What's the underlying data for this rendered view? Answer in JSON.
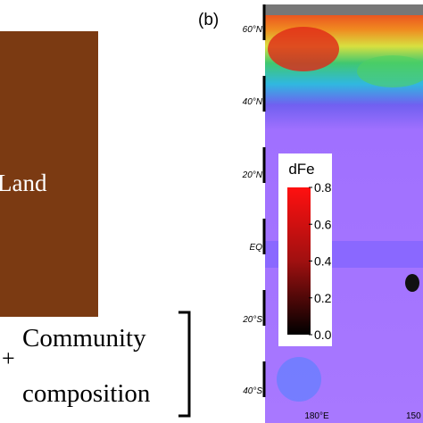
{
  "left_panel": {
    "label": "Land",
    "plus": "+",
    "line1": "Community",
    "line2": "composition"
  },
  "map_panel": {
    "panel_label": "(b)",
    "lat_labels": [
      "60°N",
      "40°N",
      "20°N",
      "EQ",
      "20°S",
      "40°S"
    ],
    "lon_labels": [
      "180°E",
      "150"
    ],
    "colorbar": {
      "title": "dFe",
      "lim": [
        0,
        0.8
      ],
      "ticks": [
        {
          "value": 0,
          "label": "0.0"
        },
        0.2,
        0.4,
        0.6,
        0.8
      ]
    }
  }
}
